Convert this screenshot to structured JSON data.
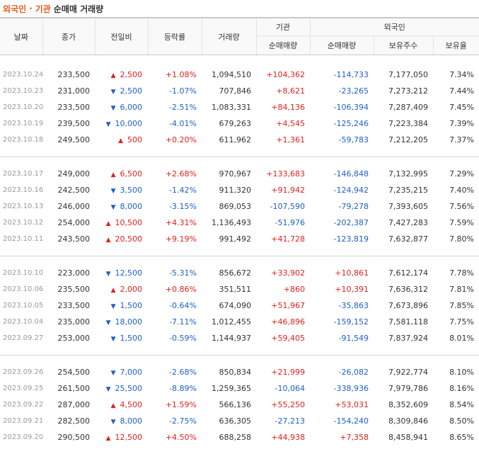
{
  "title": {
    "part1": "외국인",
    "dot": "·",
    "part2": "기관",
    "part3": "순매매 거래량"
  },
  "headers": {
    "date": "날짜",
    "close": "종가",
    "change": "전일비",
    "rate": "등락률",
    "volume": "거래량",
    "inst_group": "기관",
    "inst_net": "순매매량",
    "foreign_group": "외국인",
    "foreign_net": "순매매량",
    "foreign_shares": "보유주수",
    "foreign_ratio": "보유율"
  },
  "colors": {
    "up": "#e02020",
    "down": "#1f5fc7",
    "title_accent": "#e35a1a"
  },
  "icons": {
    "up": "triangle-up-icon",
    "down": "triangle-down-icon"
  },
  "groups": [
    [
      {
        "date": "2023.10.24",
        "close": "233,500",
        "dir": "up",
        "change": "2,500",
        "rate": "+1.08%",
        "volume": "1,094,510",
        "inst": "+104,362",
        "foreign": "-114,733",
        "shares": "7,177,050",
        "ratio": "7.34%"
      },
      {
        "date": "2023.10.23",
        "close": "231,000",
        "dir": "down",
        "change": "2,500",
        "rate": "-1.07%",
        "volume": "707,846",
        "inst": "+8,621",
        "foreign": "-23,265",
        "shares": "7,273,212",
        "ratio": "7.44%"
      },
      {
        "date": "2023.10.20",
        "close": "233,500",
        "dir": "down",
        "change": "6,000",
        "rate": "-2.51%",
        "volume": "1,083,331",
        "inst": "+84,136",
        "foreign": "-106,394",
        "shares": "7,287,409",
        "ratio": "7.45%"
      },
      {
        "date": "2023.10.19",
        "close": "239,500",
        "dir": "down",
        "change": "10,000",
        "rate": "-4.01%",
        "volume": "679,263",
        "inst": "+4,545",
        "foreign": "-125,246",
        "shares": "7,223,384",
        "ratio": "7.39%"
      },
      {
        "date": "2023.10.18",
        "close": "249,500",
        "dir": "up",
        "change": "500",
        "rate": "+0.20%",
        "volume": "611,962",
        "inst": "+1,361",
        "foreign": "-59,783",
        "shares": "7,212,205",
        "ratio": "7.37%"
      }
    ],
    [
      {
        "date": "2023.10.17",
        "close": "249,000",
        "dir": "up",
        "change": "6,500",
        "rate": "+2.68%",
        "volume": "970,967",
        "inst": "+133,683",
        "foreign": "-146,848",
        "shares": "7,132,995",
        "ratio": "7.29%"
      },
      {
        "date": "2023.10.16",
        "close": "242,500",
        "dir": "down",
        "change": "3,500",
        "rate": "-1.42%",
        "volume": "911,320",
        "inst": "+91,942",
        "foreign": "-124,942",
        "shares": "7,235,215",
        "ratio": "7.40%"
      },
      {
        "date": "2023.10.13",
        "close": "246,000",
        "dir": "down",
        "change": "8,000",
        "rate": "-3.15%",
        "volume": "869,053",
        "inst": "-107,590",
        "foreign": "-79,278",
        "shares": "7,393,605",
        "ratio": "7.56%"
      },
      {
        "date": "2023.10.12",
        "close": "254,000",
        "dir": "up",
        "change": "10,500",
        "rate": "+4.31%",
        "volume": "1,136,493",
        "inst": "-51,976",
        "foreign": "-202,387",
        "shares": "7,427,283",
        "ratio": "7.59%"
      },
      {
        "date": "2023.10.11",
        "close": "243,500",
        "dir": "up",
        "change": "20,500",
        "rate": "+9.19%",
        "volume": "991,492",
        "inst": "+41,728",
        "foreign": "-123,819",
        "shares": "7,632,877",
        "ratio": "7.80%"
      }
    ],
    [
      {
        "date": "2023.10.10",
        "close": "223,000",
        "dir": "down",
        "change": "12,500",
        "rate": "-5.31%",
        "volume": "856,672",
        "inst": "+33,902",
        "foreign": "+10,861",
        "shares": "7,612,174",
        "ratio": "7.78%"
      },
      {
        "date": "2023.10.06",
        "close": "235,500",
        "dir": "up",
        "change": "2,000",
        "rate": "+0.86%",
        "volume": "351,511",
        "inst": "+860",
        "foreign": "+10,391",
        "shares": "7,636,312",
        "ratio": "7.81%"
      },
      {
        "date": "2023.10.05",
        "close": "233,500",
        "dir": "down",
        "change": "1,500",
        "rate": "-0.64%",
        "volume": "674,090",
        "inst": "+51,967",
        "foreign": "-35,863",
        "shares": "7,673,896",
        "ratio": "7.85%"
      },
      {
        "date": "2023.10.04",
        "close": "235,000",
        "dir": "down",
        "change": "18,000",
        "rate": "-7.11%",
        "volume": "1,012,455",
        "inst": "+46,896",
        "foreign": "-159,152",
        "shares": "7,581,118",
        "ratio": "7.75%"
      },
      {
        "date": "2023.09.27",
        "close": "253,000",
        "dir": "down",
        "change": "1,500",
        "rate": "-0.59%",
        "volume": "1,144,937",
        "inst": "+59,405",
        "foreign": "-91,549",
        "shares": "7,837,924",
        "ratio": "8.01%"
      }
    ],
    [
      {
        "date": "2023.09.26",
        "close": "254,500",
        "dir": "down",
        "change": "7,000",
        "rate": "-2.68%",
        "volume": "850,834",
        "inst": "+21,999",
        "foreign": "-26,082",
        "shares": "7,922,774",
        "ratio": "8.10%"
      },
      {
        "date": "2023.09.25",
        "close": "261,500",
        "dir": "down",
        "change": "25,500",
        "rate": "-8.89%",
        "volume": "1,259,365",
        "inst": "-10,064",
        "foreign": "-338,936",
        "shares": "7,979,786",
        "ratio": "8.16%"
      },
      {
        "date": "2023.09.22",
        "close": "287,000",
        "dir": "up",
        "change": "4,500",
        "rate": "+1.59%",
        "volume": "566,136",
        "inst": "+55,250",
        "foreign": "+53,031",
        "shares": "8,352,609",
        "ratio": "8.54%"
      },
      {
        "date": "2023.09.21",
        "close": "282,500",
        "dir": "down",
        "change": "8,000",
        "rate": "-2.75%",
        "volume": "636,305",
        "inst": "-27,213",
        "foreign": "-154,240",
        "shares": "8,309,846",
        "ratio": "8.50%"
      },
      {
        "date": "2023.09.20",
        "close": "290,500",
        "dir": "up",
        "change": "12,500",
        "rate": "+4.50%",
        "volume": "688,258",
        "inst": "+44,938",
        "foreign": "+7,358",
        "shares": "8,458,941",
        "ratio": "8.65%"
      }
    ]
  ]
}
